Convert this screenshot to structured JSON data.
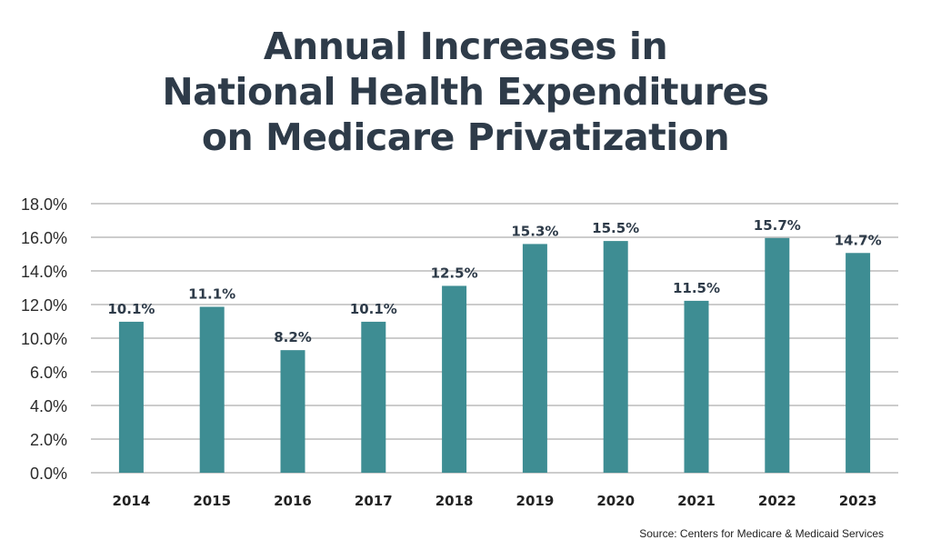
{
  "title_lines": [
    "Annual Increases in",
    "National Health Expenditures",
    "on Medicare Privatization"
  ],
  "source": "Source: Centers for Medicare & Medicaid Services",
  "colors": {
    "bar": "#3e8d93",
    "text": "#2e3b49",
    "grid": "#9a9a9a"
  },
  "chart_data": {
    "type": "bar",
    "title": "Annual Increases in National Health Expenditures on Medicare Privatization",
    "xlabel": "",
    "ylabel": "",
    "categories": [
      "2014",
      "2015",
      "2016",
      "2017",
      "2018",
      "2019",
      "2020",
      "2021",
      "2022",
      "2023"
    ],
    "values": [
      10.1,
      11.1,
      8.2,
      10.1,
      12.5,
      15.3,
      15.5,
      11.5,
      15.7,
      14.7
    ],
    "data_labels": [
      "10.1%",
      "11.1%",
      "8.2%",
      "10.1%",
      "12.5%",
      "15.3%",
      "15.5%",
      "11.5%",
      "15.7%",
      "14.7%"
    ],
    "y_tick_labels": [
      "0.0%",
      "2.0%",
      "4.0%",
      "6.0%",
      "10.0%",
      "12.0%",
      "14.0%",
      "16.0%",
      "18.0%"
    ],
    "ylim": [
      0,
      18
    ],
    "grid": true,
    "legend": "none"
  }
}
